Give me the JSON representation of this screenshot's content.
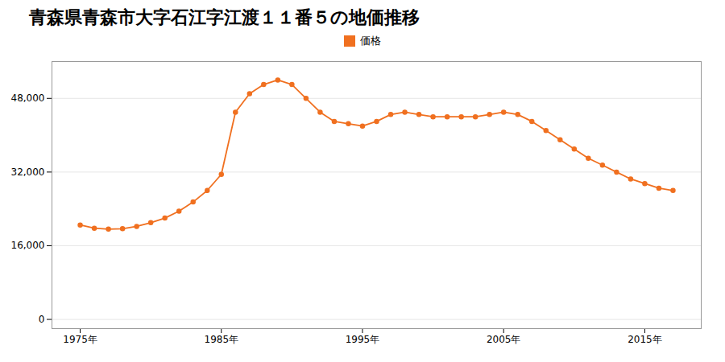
{
  "chart_data": {
    "type": "line",
    "title": "青森県青森市大字石江字江渡１１番５の地価推移",
    "x": [
      1975,
      1976,
      1977,
      1978,
      1979,
      1980,
      1981,
      1982,
      1983,
      1984,
      1985,
      1986,
      1987,
      1988,
      1989,
      1990,
      1991,
      1992,
      1993,
      1994,
      1995,
      1996,
      1997,
      1998,
      1999,
      2000,
      2001,
      2002,
      2003,
      2004,
      2005,
      2006,
      2007,
      2008,
      2009,
      2010,
      2011,
      2012,
      2013,
      2014,
      2015,
      2016,
      2017
    ],
    "series": [
      {
        "name": "価格",
        "color": "#f07020",
        "marker": "circle",
        "values": [
          20500,
          19800,
          19600,
          19700,
          20200,
          21000,
          22000,
          23500,
          25500,
          28000,
          31500,
          45000,
          49000,
          51000,
          52000,
          51000,
          48000,
          45000,
          43000,
          42500,
          42000,
          43000,
          44500,
          45000,
          44500,
          44000,
          44000,
          44000,
          44000,
          44500,
          45000,
          44500,
          43000,
          41000,
          39000,
          37000,
          35000,
          33500,
          32000,
          30500,
          29500,
          28500,
          28000
        ]
      }
    ],
    "xlim": [
      1973,
      2019
    ],
    "xticks": [
      {
        "value": 1975,
        "label": "1975年"
      },
      {
        "value": 1985,
        "label": "1985年"
      },
      {
        "value": 1995,
        "label": "1995年"
      },
      {
        "value": 2005,
        "label": "2005年"
      },
      {
        "value": 2015,
        "label": "2015年"
      }
    ],
    "ylim": [
      -2000,
      56000
    ],
    "yticks": [
      0,
      {
        "value": 16000,
        "label": "16,000"
      },
      {
        "value": 32000,
        "label": "32,000"
      },
      {
        "value": 48000,
        "label": "48,000"
      }
    ],
    "grid": true,
    "legend": "top"
  }
}
